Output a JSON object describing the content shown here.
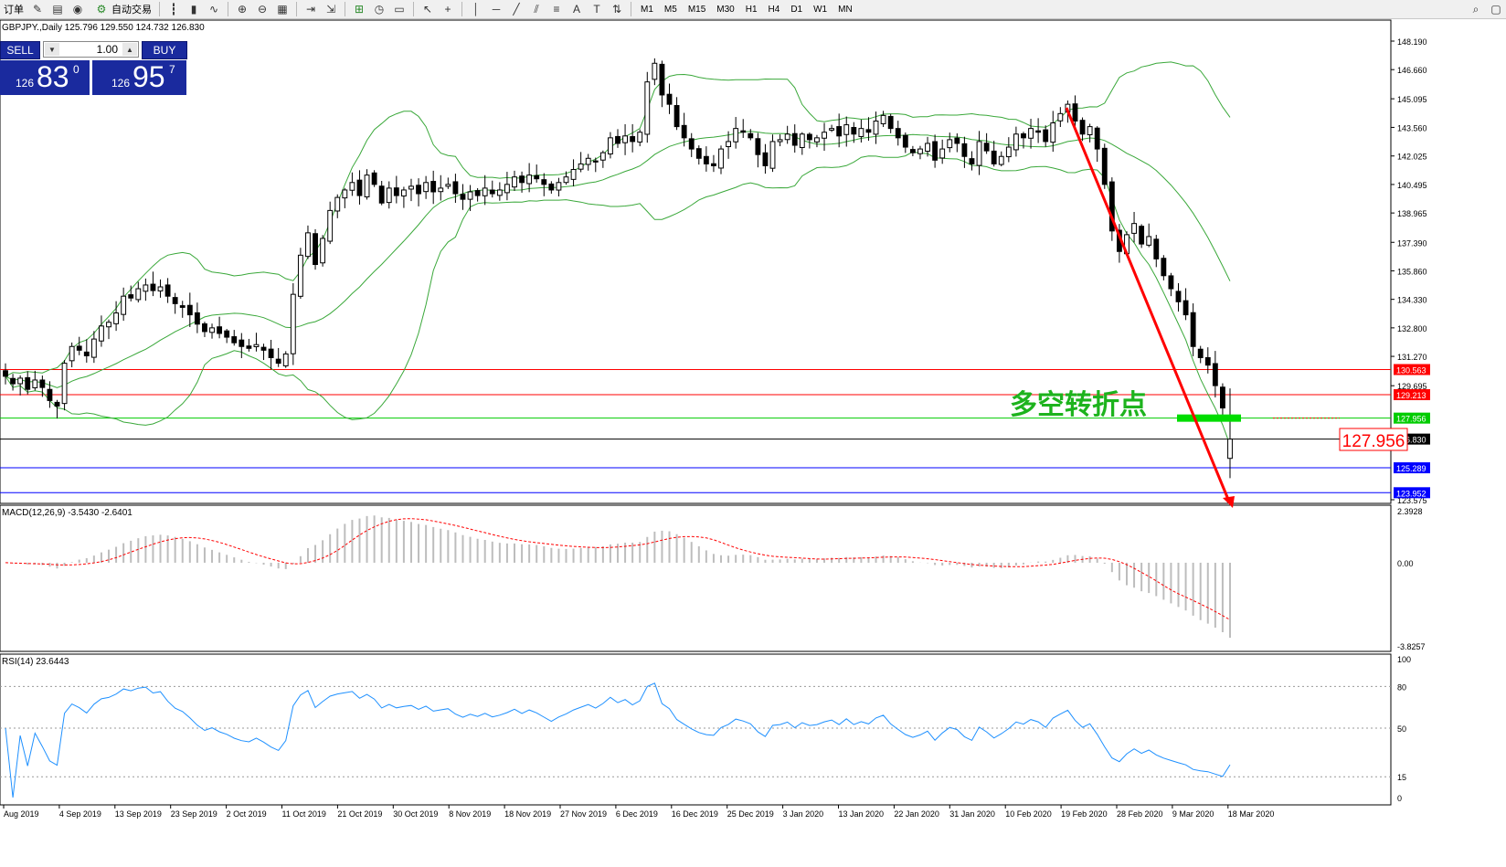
{
  "toolbar": {
    "items": [
      "订单",
      "自动交易"
    ],
    "timeframes": [
      "M1",
      "M5",
      "M15",
      "M30",
      "H1",
      "H4",
      "D1",
      "W1",
      "MN"
    ]
  },
  "chart_info": {
    "symbol_line": "GBPJPY.,Daily  125.796 129.550 124.732 126.830",
    "macd_label": "MACD(12,26,9) -3.5430 -2.6401",
    "rsi_label": "RSI(14) 23.6443"
  },
  "trade_panel": {
    "sell_label": "SELL",
    "buy_label": "BUY",
    "lot": "1.00",
    "sell_small": "126",
    "sell_big": "83",
    "sell_sup": "0",
    "buy_small": "126",
    "buy_big": "95",
    "buy_sup": "7"
  },
  "annotation": {
    "text": "多空转折点",
    "price_box": "127.956"
  },
  "price_axis": {
    "ticks": [
      "148.190",
      "146.660",
      "145.095",
      "143.560",
      "142.025",
      "140.495",
      "138.965",
      "137.390",
      "135.860",
      "134.330",
      "132.800",
      "131.270",
      "129.695",
      "127.956",
      "126.830",
      "125.289",
      "123.952",
      "123.575"
    ],
    "levels": [
      {
        "label": "130.563",
        "color": "#ff0000"
      },
      {
        "label": "129.213",
        "color": "#ff0000"
      },
      {
        "label": "127.956",
        "color": "#00cc00"
      },
      {
        "label": "126.830",
        "color": "#000000"
      },
      {
        "label": "125.289",
        "color": "#0000ff"
      },
      {
        "label": "123.952",
        "color": "#0000ff"
      }
    ]
  },
  "macd_axis": {
    "ticks": [
      "2.3928",
      "0.00",
      "-3.8257"
    ]
  },
  "rsi_axis": {
    "ticks": [
      "100",
      "80",
      "50",
      "15",
      "0"
    ]
  },
  "date_axis": [
    "Aug 2019",
    "4 Sep 2019",
    "13 Sep 2019",
    "23 Sep 2019",
    "2 Oct 2019",
    "11 Oct 2019",
    "21 Oct 2019",
    "30 Oct 2019",
    "8 Nov 2019",
    "18 Nov 2019",
    "27 Nov 2019",
    "6 Dec 2019",
    "16 Dec 2019",
    "25 Dec 2019",
    "3 Jan 2020",
    "13 Jan 2020",
    "22 Jan 2020",
    "31 Jan 2020",
    "10 Feb 2020",
    "19 Feb 2020",
    "28 Feb 2020",
    "9 Mar 2020",
    "18 Mar 2020"
  ],
  "chart_data": {
    "type": "candlestick",
    "symbol": "GBPJPY.",
    "timeframe": "Daily",
    "ylim": [
      123.575,
      148.19
    ],
    "closes": [
      130.2,
      129.8,
      130.1,
      129.5,
      130.0,
      129.6,
      128.9,
      128.6,
      130.9,
      131.8,
      131.6,
      131.3,
      132.2,
      132.9,
      133.1,
      133.6,
      134.5,
      134.4,
      134.9,
      135.1,
      134.8,
      135.0,
      134.5,
      134.1,
      133.9,
      133.5,
      133.0,
      132.6,
      132.8,
      132.5,
      132.3,
      132.0,
      131.8,
      131.7,
      131.9,
      131.6,
      131.2,
      130.9,
      131.4,
      134.6,
      136.7,
      137.9,
      136.2,
      137.6,
      139.1,
      139.8,
      140.2,
      140.6,
      139.9,
      141.0,
      140.5,
      139.5,
      140.3,
      139.9,
      140.2,
      140.4,
      140.0,
      140.6,
      140.1,
      140.3,
      140.5,
      140.0,
      139.7,
      140.1,
      139.9,
      140.3,
      140.0,
      140.2,
      140.5,
      140.9,
      140.6,
      141.0,
      140.8,
      140.5,
      140.2,
      140.6,
      140.9,
      141.3,
      141.6,
      141.9,
      141.7,
      142.2,
      143.0,
      142.7,
      143.1,
      142.8,
      143.3,
      146.0,
      147.0,
      145.3,
      144.8,
      143.6,
      143.0,
      142.4,
      141.9,
      141.6,
      141.5,
      142.4,
      142.8,
      143.5,
      143.3,
      143.0,
      142.1,
      141.5,
      142.8,
      142.9,
      143.2,
      142.6,
      143.2,
      142.9,
      143.0,
      143.3,
      143.5,
      143.1,
      143.7,
      143.2,
      143.5,
      143.3,
      143.9,
      144.2,
      143.5,
      143.0,
      142.5,
      142.2,
      142.4,
      142.7,
      141.8,
      142.4,
      142.9,
      142.7,
      142.0,
      141.6,
      142.8,
      142.3,
      141.6,
      142.0,
      142.5,
      143.2,
      143.0,
      143.5,
      143.3,
      142.8,
      143.8,
      144.3,
      144.8,
      143.9,
      143.2,
      143.6,
      142.4,
      140.5,
      138.0,
      136.9,
      137.8,
      138.4,
      137.3,
      137.7,
      136.5,
      135.6,
      134.9,
      134.2,
      133.5,
      131.8,
      131.2,
      130.8,
      129.7,
      128.5,
      126.83
    ],
    "bollinger": {
      "period": 20,
      "deviation": 2
    },
    "horizontal_levels": [
      130.563,
      129.213,
      127.956,
      126.83,
      125.289,
      123.952
    ],
    "turning_point": 127.956,
    "macd": {
      "fast": 12,
      "slow": 26,
      "signal": 9,
      "main": -3.543,
      "signal_value": -2.6401,
      "ylim": [
        -3.8257,
        2.3928
      ]
    },
    "rsi": {
      "period": 14,
      "value": 23.6443,
      "levels": [
        80,
        50,
        15
      ],
      "ylim": [
        0,
        100
      ]
    }
  }
}
